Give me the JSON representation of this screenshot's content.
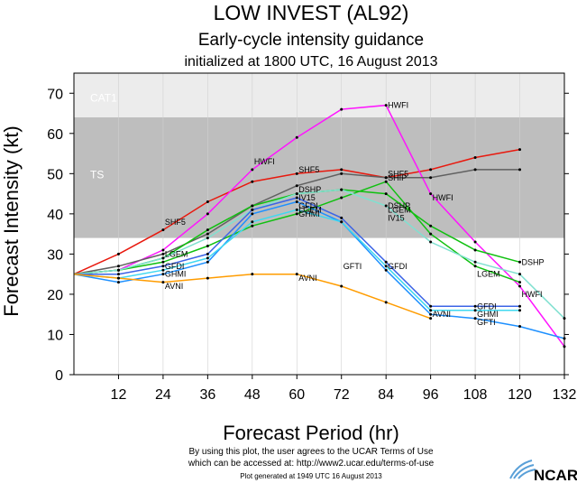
{
  "chart_data": {
    "type": "line",
    "title": "LOW INVEST (AL92)",
    "subtitle": "Early-cycle intensity guidance",
    "subtitle2": "initialized at 1800 UTC, 16 August 2013",
    "xlabel": "Forecast Period (hr)",
    "ylabel": "Forecast Intensity (kt)",
    "xlim": [
      0,
      132
    ],
    "ylim": [
      0,
      75
    ],
    "xticks": [
      12,
      24,
      36,
      48,
      60,
      72,
      84,
      96,
      108,
      120,
      132
    ],
    "yticks": [
      0,
      10,
      20,
      30,
      40,
      50,
      60,
      70
    ],
    "bands": [
      {
        "label": "TS",
        "from": 34,
        "to": 64,
        "color": "#bebebe"
      },
      {
        "label": "CAT1",
        "from": 64,
        "to": 75,
        "color": "#ececec"
      }
    ],
    "series": [
      {
        "name": "SHF5",
        "color": "#e8190e",
        "x": [
          0,
          12,
          24,
          36,
          48,
          60,
          72,
          84,
          96,
          108,
          120
        ],
        "y": [
          25,
          30,
          36,
          43,
          48,
          50,
          51,
          49,
          51,
          54,
          56
        ],
        "labels": [
          {
            "x": 24,
            "y": 38
          },
          {
            "x": 60,
            "y": 51
          },
          {
            "x": 84,
            "y": 50
          }
        ]
      },
      {
        "name": "HWFI",
        "color": "#ff14ff",
        "x": [
          0,
          12,
          24,
          36,
          48,
          60,
          72,
          84,
          96,
          108,
          120,
          132
        ],
        "y": [
          25,
          26,
          31,
          40,
          51,
          59,
          66,
          67,
          45,
          33,
          22,
          7
        ],
        "labels": [
          {
            "x": 48,
            "y": 53
          },
          {
            "x": 84,
            "y": 67
          },
          {
            "x": 96,
            "y": 44
          },
          {
            "x": 120,
            "y": 20
          }
        ]
      },
      {
        "name": "SHIP",
        "color": "#606060",
        "x": [
          0,
          12,
          24,
          36,
          48,
          60,
          72,
          84,
          96,
          108,
          120
        ],
        "y": [
          25,
          27,
          30,
          35,
          42,
          47,
          50,
          49,
          49,
          51,
          51
        ],
        "labels": [
          {
            "x": 84,
            "y": 49
          }
        ]
      },
      {
        "name": "DSHP",
        "color": "#10c010",
        "x": [
          0,
          12,
          24,
          36,
          48,
          60,
          72,
          84,
          96,
          108,
          120
        ],
        "y": [
          25,
          26,
          29,
          36,
          42,
          45,
          46,
          45,
          37,
          31,
          28
        ],
        "labels": [
          {
            "x": 60,
            "y": 46
          },
          {
            "x": 84,
            "y": 42
          },
          {
            "x": 120,
            "y": 28
          }
        ]
      },
      {
        "name": "LGEM",
        "color": "#10c010",
        "x": [
          0,
          12,
          24,
          36,
          48,
          60,
          72,
          84,
          96,
          108,
          120
        ],
        "y": [
          25,
          26,
          28,
          32,
          37,
          40,
          44,
          48,
          35,
          27,
          23
        ],
        "labels": [
          {
            "x": 24,
            "y": 30
          },
          {
            "x": 60,
            "y": 41
          },
          {
            "x": 84,
            "y": 41
          },
          {
            "x": 108,
            "y": 25
          }
        ]
      },
      {
        "name": "IV15",
        "color": "#80e0d0",
        "x": [
          0,
          12,
          24,
          36,
          48,
          60,
          72,
          84,
          96,
          108,
          120,
          132
        ],
        "y": [
          25,
          26,
          29,
          34,
          41,
          45,
          46,
          42,
          33,
          28,
          25,
          14
        ],
        "labels": [
          {
            "x": 60,
            "y": 44
          },
          {
            "x": 84,
            "y": 39
          }
        ]
      },
      {
        "name": "GFDI",
        "color": "#3c64e6",
        "x": [
          0,
          12,
          24,
          36,
          48,
          60,
          72,
          84,
          96,
          108,
          120
        ],
        "y": [
          25,
          25,
          27,
          30,
          41,
          44,
          39,
          28,
          17,
          17,
          17
        ],
        "labels": [
          {
            "x": 24,
            "y": 27
          },
          {
            "x": 60,
            "y": 42
          },
          {
            "x": 84,
            "y": 27
          },
          {
            "x": 108,
            "y": 17
          }
        ]
      },
      {
        "name": "GFTI",
        "color": "#1e90ff",
        "x": [
          0,
          12,
          24,
          36,
          48,
          60,
          72,
          84,
          96,
          108,
          120,
          132
        ],
        "y": [
          25,
          23,
          25,
          28,
          40,
          43,
          38,
          26,
          15,
          14,
          12,
          9
        ],
        "labels": [
          {
            "x": 72,
            "y": 27
          },
          {
            "x": 108,
            "y": 13
          }
        ]
      },
      {
        "name": "GHMI",
        "color": "#40d8f0",
        "x": [
          0,
          12,
          24,
          36,
          48,
          60,
          72,
          84,
          96,
          108,
          120
        ],
        "y": [
          25,
          24,
          26,
          29,
          38,
          41,
          38,
          27,
          16,
          16,
          16
        ],
        "labels": [
          {
            "x": 24,
            "y": 25
          },
          {
            "x": 60,
            "y": 40
          },
          {
            "x": 108,
            "y": 15
          }
        ]
      },
      {
        "name": "AVNI",
        "color": "#ff9c00",
        "x": [
          0,
          12,
          24,
          36,
          48,
          60,
          72,
          84,
          96
        ],
        "y": [
          25,
          24,
          23,
          24,
          25,
          25,
          22,
          18,
          14
        ],
        "labels": [
          {
            "x": 24,
            "y": 22
          },
          {
            "x": 60,
            "y": 24
          },
          {
            "x": 96,
            "y": 15
          }
        ]
      }
    ]
  },
  "footer": {
    "disclaimer1": "By using this plot, the user agrees to the UCAR Terms of Use",
    "disclaimer2": "which can be accessed at: http://www2.ucar.edu/terms-of-use",
    "generated": "Plot generated at 1949 UTC  16 August 2013",
    "logo": "NCAR"
  }
}
